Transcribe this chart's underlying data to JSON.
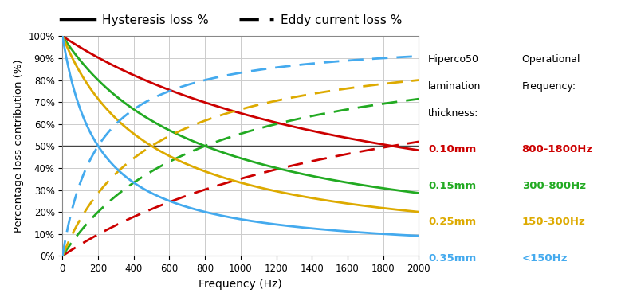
{
  "xlabel": "Frequency (Hz)",
  "ylabel": "Percentage loss contribution (%)",
  "xlim": [
    0,
    2000
  ],
  "ylim": [
    0,
    1.0
  ],
  "crossover_freqs": {
    "0.35mm": 200,
    "0.25mm": 500,
    "0.15mm": 800,
    "0.10mm": 1850
  },
  "colors": {
    "0.10mm": "#cc0000",
    "0.15mm": "#22aa22",
    "0.25mm": "#ddaa00",
    "0.35mm": "#44aaee"
  },
  "thickness_labels": [
    "0.10mm",
    "0.15mm",
    "0.25mm",
    "0.35mm"
  ],
  "op_freqs": [
    "800-1800Hz",
    "300-800Hz",
    "150-300Hz",
    "<150Hz"
  ],
  "legend_solid": "Hysteresis loss %",
  "legend_dashed": "Eddy current loss %",
  "hline_y": 0.5,
  "background_color": "#ffffff",
  "grid_color": "#cccccc",
  "annotation_label1": "Hiperco50\nlamination\nthickness:",
  "annotation_label2": "Operational\nFrequency:"
}
